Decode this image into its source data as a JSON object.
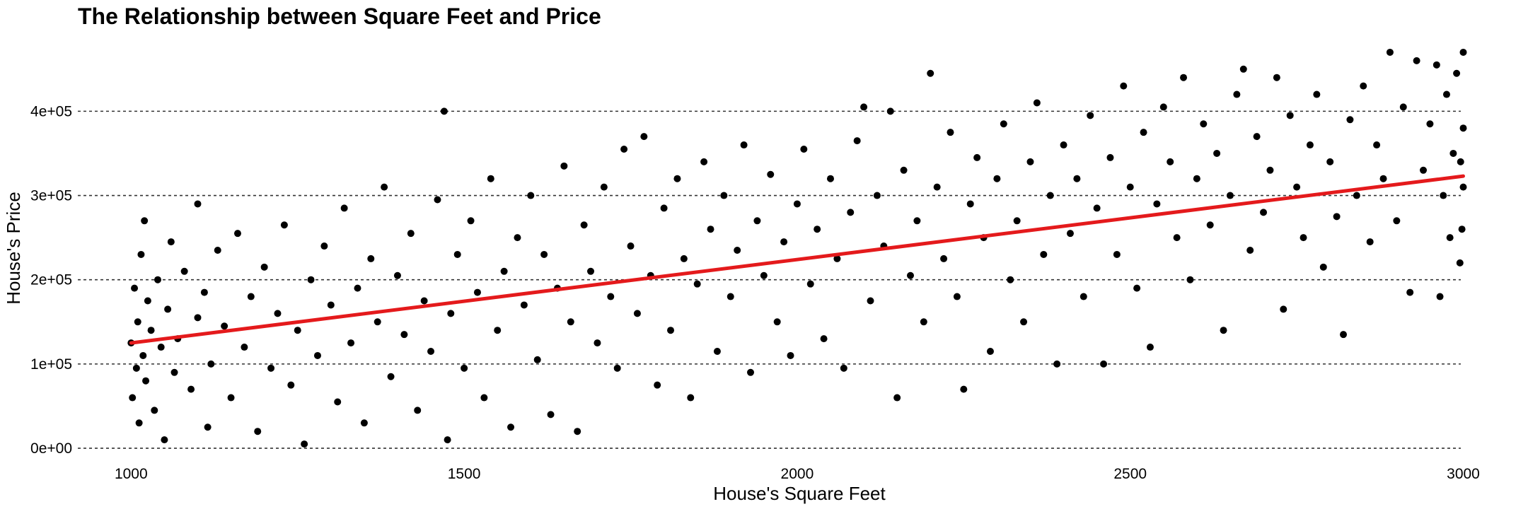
{
  "chart_data": {
    "type": "scatter",
    "title": "The Relationship between Square Feet and Price",
    "xlabel": "House's Square Feet",
    "ylabel": "House's Price",
    "xlim": [
      920,
      3060
    ],
    "ylim": [
      -5000,
      475000
    ],
    "x_ticks": [
      {
        "value": 1000,
        "label": "1000"
      },
      {
        "value": 1500,
        "label": "1500"
      },
      {
        "value": 2000,
        "label": "2000"
      },
      {
        "value": 2500,
        "label": "2500"
      },
      {
        "value": 3000,
        "label": "3000"
      }
    ],
    "y_ticks": [
      {
        "value": 0,
        "label": "0e+00"
      },
      {
        "value": 100000,
        "label": "1e+05"
      },
      {
        "value": 200000,
        "label": "2e+05"
      },
      {
        "value": 300000,
        "label": "3e+05"
      },
      {
        "value": 400000,
        "label": "4e+05"
      }
    ],
    "grid": "horizontal-dashed",
    "point_color": "#000000",
    "series": [
      {
        "points": [
          [
            1000,
            125000
          ],
          [
            1002,
            60000
          ],
          [
            1005,
            190000
          ],
          [
            1008,
            95000
          ],
          [
            1010,
            150000
          ],
          [
            1012,
            30000
          ],
          [
            1015,
            230000
          ],
          [
            1018,
            110000
          ],
          [
            1020,
            270000
          ],
          [
            1022,
            80000
          ],
          [
            1025,
            175000
          ],
          [
            1030,
            140000
          ],
          [
            1035,
            45000
          ],
          [
            1040,
            200000
          ],
          [
            1045,
            120000
          ],
          [
            1050,
            10000
          ],
          [
            1055,
            165000
          ],
          [
            1060,
            245000
          ],
          [
            1065,
            90000
          ],
          [
            1070,
            130000
          ],
          [
            1080,
            210000
          ],
          [
            1090,
            70000
          ],
          [
            1100,
            290000
          ],
          [
            1100,
            155000
          ],
          [
            1110,
            185000
          ],
          [
            1115,
            25000
          ],
          [
            1120,
            100000
          ],
          [
            1130,
            235000
          ],
          [
            1140,
            145000
          ],
          [
            1150,
            60000
          ],
          [
            1160,
            255000
          ],
          [
            1170,
            120000
          ],
          [
            1180,
            180000
          ],
          [
            1190,
            20000
          ],
          [
            1200,
            215000
          ],
          [
            1210,
            95000
          ],
          [
            1220,
            160000
          ],
          [
            1230,
            265000
          ],
          [
            1240,
            75000
          ],
          [
            1250,
            140000
          ],
          [
            1260,
            5000
          ],
          [
            1270,
            200000
          ],
          [
            1280,
            110000
          ],
          [
            1290,
            240000
          ],
          [
            1300,
            170000
          ],
          [
            1310,
            55000
          ],
          [
            1320,
            285000
          ],
          [
            1330,
            125000
          ],
          [
            1340,
            190000
          ],
          [
            1350,
            30000
          ],
          [
            1360,
            225000
          ],
          [
            1370,
            150000
          ],
          [
            1380,
            310000
          ],
          [
            1390,
            85000
          ],
          [
            1400,
            205000
          ],
          [
            1410,
            135000
          ],
          [
            1420,
            255000
          ],
          [
            1430,
            45000
          ],
          [
            1440,
            175000
          ],
          [
            1450,
            115000
          ],
          [
            1460,
            295000
          ],
          [
            1470,
            400000
          ],
          [
            1475,
            10000
          ],
          [
            1480,
            160000
          ],
          [
            1490,
            230000
          ],
          [
            1500,
            95000
          ],
          [
            1510,
            270000
          ],
          [
            1520,
            185000
          ],
          [
            1530,
            60000
          ],
          [
            1540,
            320000
          ],
          [
            1550,
            140000
          ],
          [
            1560,
            210000
          ],
          [
            1570,
            25000
          ],
          [
            1580,
            250000
          ],
          [
            1590,
            170000
          ],
          [
            1600,
            300000
          ],
          [
            1610,
            105000
          ],
          [
            1620,
            230000
          ],
          [
            1630,
            40000
          ],
          [
            1640,
            190000
          ],
          [
            1650,
            335000
          ],
          [
            1660,
            150000
          ],
          [
            1670,
            20000
          ],
          [
            1680,
            265000
          ],
          [
            1690,
            210000
          ],
          [
            1700,
            125000
          ],
          [
            1710,
            310000
          ],
          [
            1720,
            180000
          ],
          [
            1730,
            95000
          ],
          [
            1740,
            355000
          ],
          [
            1750,
            240000
          ],
          [
            1760,
            160000
          ],
          [
            1770,
            370000
          ],
          [
            1780,
            205000
          ],
          [
            1790,
            75000
          ],
          [
            1800,
            285000
          ],
          [
            1810,
            140000
          ],
          [
            1820,
            320000
          ],
          [
            1830,
            225000
          ],
          [
            1840,
            60000
          ],
          [
            1850,
            195000
          ],
          [
            1860,
            340000
          ],
          [
            1870,
            260000
          ],
          [
            1880,
            115000
          ],
          [
            1890,
            300000
          ],
          [
            1900,
            180000
          ],
          [
            1910,
            235000
          ],
          [
            1920,
            360000
          ],
          [
            1930,
            90000
          ],
          [
            1940,
            270000
          ],
          [
            1950,
            205000
          ],
          [
            1960,
            325000
          ],
          [
            1970,
            150000
          ],
          [
            1980,
            245000
          ],
          [
            1990,
            110000
          ],
          [
            2000,
            290000
          ],
          [
            2010,
            355000
          ],
          [
            2020,
            195000
          ],
          [
            2030,
            260000
          ],
          [
            2040,
            130000
          ],
          [
            2050,
            320000
          ],
          [
            2060,
            225000
          ],
          [
            2070,
            95000
          ],
          [
            2080,
            280000
          ],
          [
            2090,
            365000
          ],
          [
            2100,
            405000
          ],
          [
            2110,
            175000
          ],
          [
            2120,
            300000
          ],
          [
            2130,
            240000
          ],
          [
            2140,
            400000
          ],
          [
            2150,
            60000
          ],
          [
            2160,
            330000
          ],
          [
            2170,
            205000
          ],
          [
            2180,
            270000
          ],
          [
            2190,
            150000
          ],
          [
            2200,
            445000
          ],
          [
            2210,
            310000
          ],
          [
            2220,
            225000
          ],
          [
            2230,
            375000
          ],
          [
            2240,
            180000
          ],
          [
            2250,
            70000
          ],
          [
            2260,
            290000
          ],
          [
            2270,
            345000
          ],
          [
            2280,
            250000
          ],
          [
            2290,
            115000
          ],
          [
            2300,
            320000
          ],
          [
            2310,
            385000
          ],
          [
            2320,
            200000
          ],
          [
            2330,
            270000
          ],
          [
            2340,
            150000
          ],
          [
            2350,
            340000
          ],
          [
            2360,
            410000
          ],
          [
            2370,
            230000
          ],
          [
            2380,
            300000
          ],
          [
            2390,
            100000
          ],
          [
            2400,
            360000
          ],
          [
            2410,
            255000
          ],
          [
            2420,
            320000
          ],
          [
            2430,
            180000
          ],
          [
            2440,
            395000
          ],
          [
            2450,
            285000
          ],
          [
            2460,
            100000
          ],
          [
            2470,
            345000
          ],
          [
            2480,
            230000
          ],
          [
            2490,
            430000
          ],
          [
            2500,
            310000
          ],
          [
            2510,
            190000
          ],
          [
            2520,
            375000
          ],
          [
            2530,
            120000
          ],
          [
            2540,
            290000
          ],
          [
            2550,
            405000
          ],
          [
            2560,
            340000
          ],
          [
            2570,
            250000
          ],
          [
            2580,
            440000
          ],
          [
            2590,
            200000
          ],
          [
            2600,
            320000
          ],
          [
            2610,
            385000
          ],
          [
            2620,
            265000
          ],
          [
            2630,
            350000
          ],
          [
            2640,
            140000
          ],
          [
            2650,
            300000
          ],
          [
            2660,
            420000
          ],
          [
            2670,
            450000
          ],
          [
            2680,
            235000
          ],
          [
            2690,
            370000
          ],
          [
            2700,
            280000
          ],
          [
            2710,
            330000
          ],
          [
            2720,
            440000
          ],
          [
            2730,
            165000
          ],
          [
            2740,
            395000
          ],
          [
            2750,
            310000
          ],
          [
            2760,
            250000
          ],
          [
            2770,
            360000
          ],
          [
            2780,
            420000
          ],
          [
            2790,
            215000
          ],
          [
            2800,
            340000
          ],
          [
            2810,
            275000
          ],
          [
            2820,
            135000
          ],
          [
            2830,
            390000
          ],
          [
            2840,
            300000
          ],
          [
            2850,
            430000
          ],
          [
            2860,
            245000
          ],
          [
            2870,
            360000
          ],
          [
            2880,
            320000
          ],
          [
            2890,
            470000
          ],
          [
            2900,
            270000
          ],
          [
            2910,
            405000
          ],
          [
            2920,
            185000
          ],
          [
            2930,
            460000
          ],
          [
            2940,
            330000
          ],
          [
            2950,
            385000
          ],
          [
            2960,
            455000
          ],
          [
            2965,
            180000
          ],
          [
            2970,
            300000
          ],
          [
            2975,
            420000
          ],
          [
            2980,
            250000
          ],
          [
            2985,
            350000
          ],
          [
            2990,
            445000
          ],
          [
            2995,
            220000
          ],
          [
            3000,
            470000
          ],
          [
            3000,
            310000
          ],
          [
            3000,
            380000
          ],
          [
            2998,
            260000
          ],
          [
            2996,
            340000
          ]
        ]
      }
    ],
    "trend_line": {
      "color": "#e41a1c",
      "points": [
        [
          1000,
          125000
        ],
        [
          3000,
          323000
        ]
      ]
    }
  }
}
